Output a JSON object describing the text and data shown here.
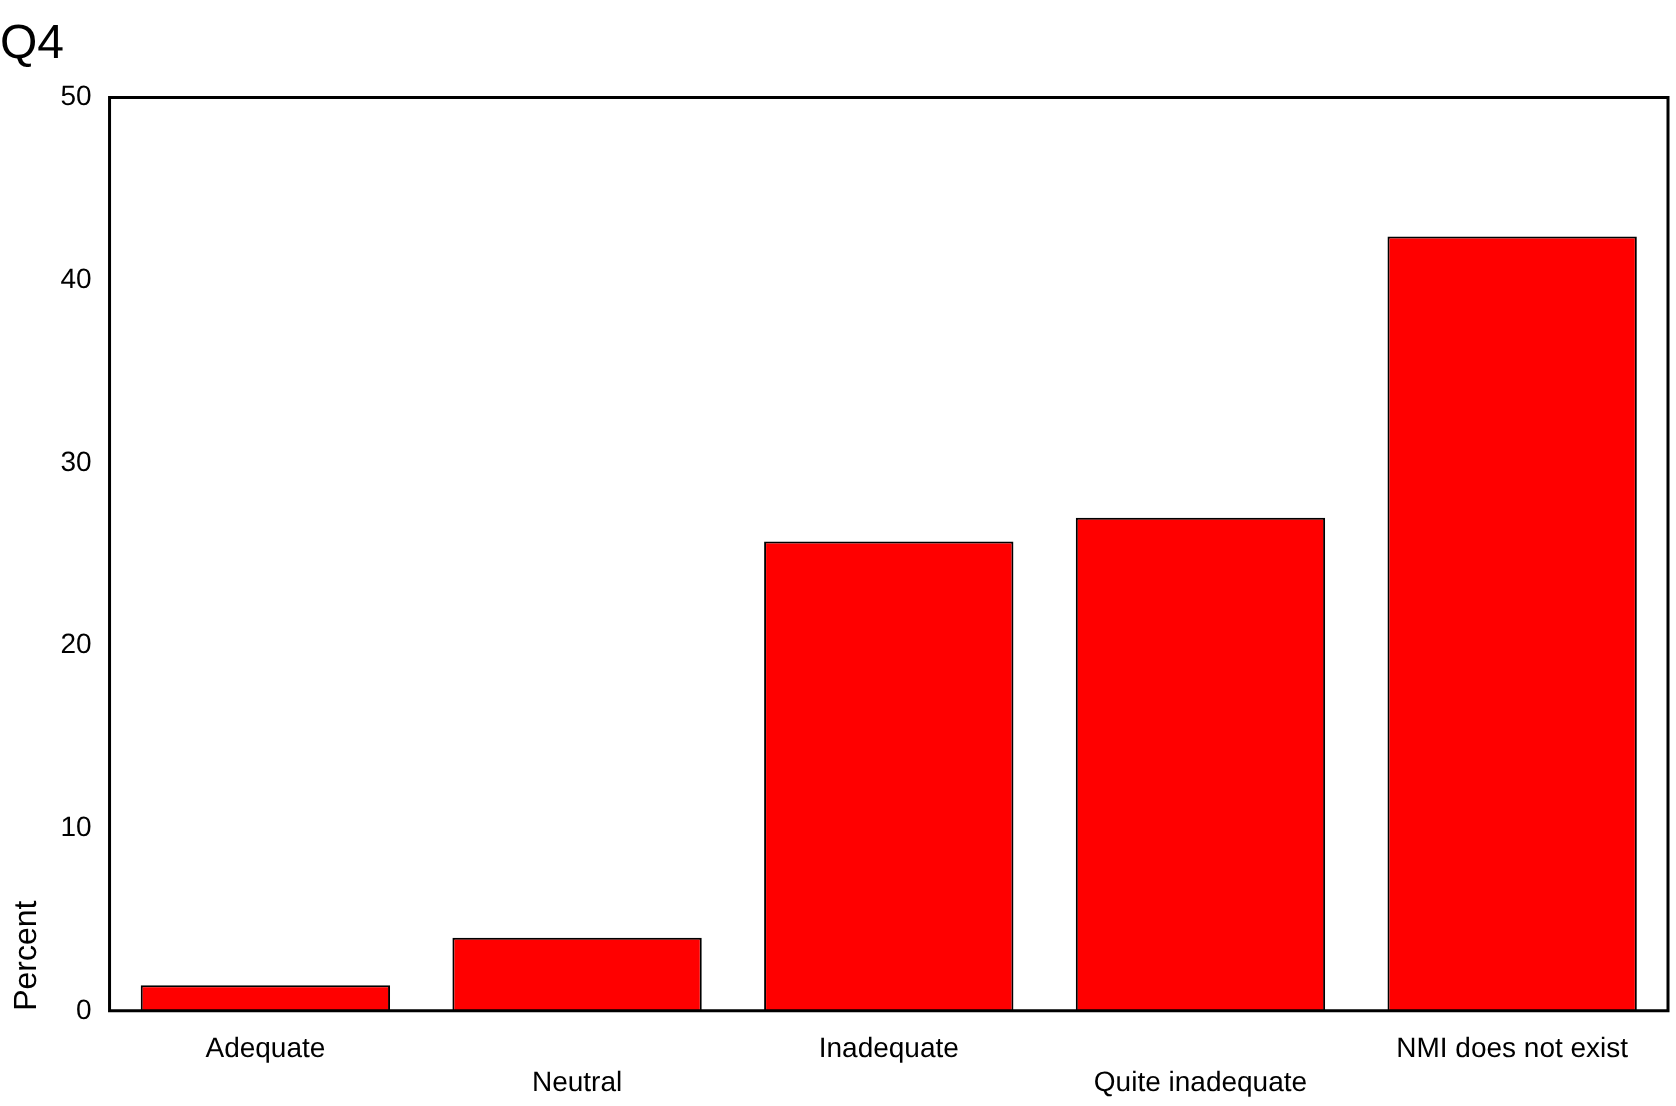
{
  "chart_data": {
    "type": "bar",
    "title": "Q4",
    "ylabel": "Percent",
    "categories": [
      "Adequate",
      "Neutral",
      "Inadequate",
      "Quite inadequate",
      "NMI does not exist"
    ],
    "values": [
      1.4,
      4.0,
      25.7,
      27.0,
      42.4
    ],
    "color": "#ff0000",
    "ylim": [
      0,
      50
    ],
    "yticks": [
      0,
      10,
      20,
      30,
      40,
      50
    ],
    "grid": false,
    "legend": false
  }
}
